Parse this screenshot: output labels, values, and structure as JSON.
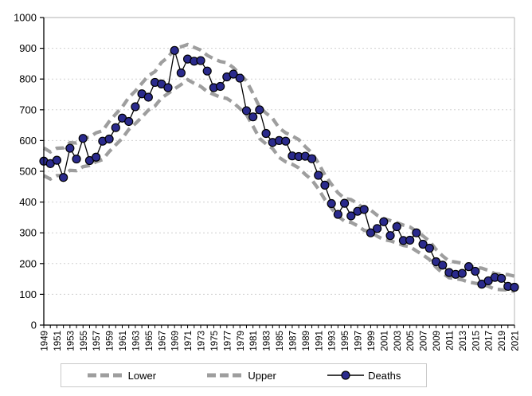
{
  "chart_data": {
    "type": "line",
    "title": "",
    "xlabel": "",
    "ylabel": "",
    "ylim": [
      0,
      1000
    ],
    "ytick_step": 100,
    "xtick_label_step": 2,
    "grid": "horizontal dashed",
    "legend_position": "bottom",
    "x": [
      1949,
      1950,
      1951,
      1952,
      1953,
      1954,
      1955,
      1956,
      1957,
      1958,
      1959,
      1960,
      1961,
      1962,
      1963,
      1964,
      1965,
      1966,
      1967,
      1968,
      1969,
      1970,
      1971,
      1972,
      1973,
      1974,
      1975,
      1976,
      1977,
      1978,
      1979,
      1980,
      1981,
      1982,
      1983,
      1984,
      1985,
      1986,
      1987,
      1988,
      1989,
      1990,
      1991,
      1992,
      1993,
      1994,
      1995,
      1996,
      1997,
      1998,
      1999,
      2000,
      2001,
      2002,
      2003,
      2004,
      2005,
      2006,
      2007,
      2008,
      2009,
      2010,
      2011,
      2012,
      2013,
      2014,
      2015,
      2016,
      2017,
      2018,
      2019,
      2020,
      2021
    ],
    "series": [
      {
        "name": "Lower",
        "style": "dashed",
        "color": "#9E9E9E",
        "values": [
          486,
          475,
          486,
          486,
          503,
          502,
          515,
          519,
          531,
          538,
          564,
          586,
          607,
          636,
          655,
          676,
          699,
          712,
          738,
          753,
          768,
          782,
          798,
          786,
          776,
          759,
          750,
          741,
          737,
          723,
          704,
          684,
          647,
          607,
          589,
          574,
          545,
          531,
          523,
          511,
          490,
          472,
          443,
          408,
          380,
          354,
          338,
          334,
          323,
          308,
          304,
          289,
          278,
          274,
          267,
          259,
          255,
          241,
          228,
          213,
          188,
          169,
          154,
          151,
          147,
          140,
          136,
          133,
          126,
          117,
          115,
          114,
          109
        ]
      },
      {
        "name": "Upper",
        "style": "dashed",
        "color": "#9E9E9E",
        "values": [
          576,
          563,
          575,
          576,
          593,
          592,
          607,
          611,
          625,
          632,
          662,
          686,
          709,
          740,
          761,
          786,
          811,
          824,
          854,
          871,
          898,
          905,
          912,
          903,
          894,
          877,
          866,
          857,
          853,
          837,
          816,
          794,
          753,
          709,
          689,
          672,
          641,
          625,
          615,
          603,
          580,
          560,
          527,
          488,
          458,
          430,
          412,
          408,
          395,
          378,
          374,
          357,
          346,
          340,
          333,
          325,
          319,
          305,
          290,
          273,
          246,
          225,
          208,
          205,
          201,
          192,
          188,
          185,
          178,
          167,
          165,
          164,
          159
        ]
      },
      {
        "name": "Deaths",
        "style": "solid-with-markers",
        "line_color": "#000000",
        "marker_color": "#2A2A8C",
        "values": [
          533,
          525,
          536,
          480,
          575,
          540,
          607,
          535,
          546,
          598,
          605,
          642,
          673,
          662,
          710,
          752,
          741,
          789,
          784,
          772,
          893,
          820,
          865,
          858,
          860,
          826,
          772,
          776,
          807,
          816,
          803,
          697,
          677,
          700,
          623,
          594,
          600,
          598,
          550,
          548,
          549,
          541,
          487,
          455,
          395,
          360,
          396,
          355,
          370,
          376,
          300,
          314,
          336,
          291,
          320,
          275,
          276,
          300,
          263,
          250,
          206,
          195,
          171,
          165,
          168,
          190,
          175,
          133,
          144,
          155,
          152,
          126,
          123
        ]
      }
    ]
  },
  "legend": {
    "items": [
      {
        "label": "Lower"
      },
      {
        "label": "Upper"
      },
      {
        "label": "Deaths"
      }
    ]
  },
  "colors": {
    "band": "#9E9E9E",
    "marker": "#2A2A8C",
    "series_line": "#000000",
    "axis": "#000000",
    "gridline": "#D0D0D0",
    "plot_border": "#C0C0C0",
    "legend_border": "#C9C9C9",
    "background": "#FFFFFF"
  }
}
